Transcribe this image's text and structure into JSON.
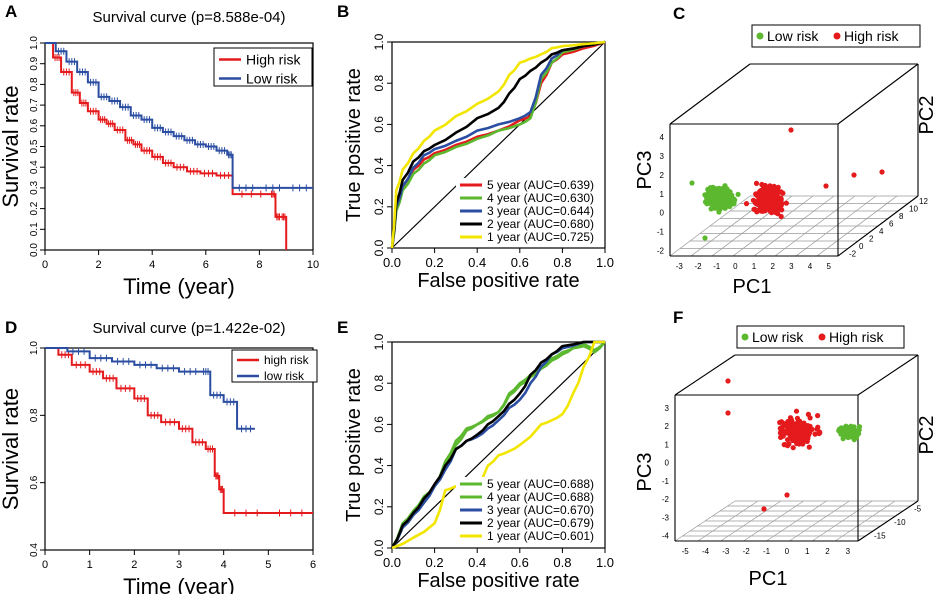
{
  "panel_letters": [
    "A",
    "B",
    "C",
    "D",
    "E",
    "F"
  ],
  "colors": {
    "red": "#e41a1c",
    "blue": "#2b4ea2",
    "green": "#5cb82e",
    "black": "#000000",
    "yellow": "#f2e600",
    "axis": "#000000",
    "grid": "#9a9a9a"
  },
  "chart_data": [
    {
      "panel": "A",
      "type": "line",
      "title": "Survival curve (p=8.588e-04)",
      "xlabel": "Time (year)",
      "ylabel": "Survival rate",
      "xlim": [
        0,
        10
      ],
      "ylim": [
        0,
        1
      ],
      "xticks": [
        0,
        2,
        4,
        6,
        8,
        10
      ],
      "yticks": [
        0.0,
        0.1,
        0.2,
        0.3,
        0.4,
        0.5,
        0.6,
        0.7,
        0.8,
        0.9,
        1.0
      ],
      "ytick_labels": [
        "0.0",
        "0.1",
        "0.2",
        "0.3",
        "0.4",
        "0.5",
        "0.6",
        "0.7",
        "0.8",
        "0.9",
        "1.0"
      ],
      "legend": "top-right",
      "series": [
        {
          "name": "High risk",
          "color": "#e41a1c",
          "x": [
            0,
            0.3,
            0.6,
            1.0,
            1.3,
            1.6,
            2.0,
            2.3,
            2.6,
            3.0,
            3.3,
            3.6,
            4.0,
            4.4,
            4.8,
            5.3,
            5.8,
            6.4,
            7.0,
            8.4,
            8.6,
            8.8,
            9.0
          ],
          "y": [
            1.0,
            0.93,
            0.86,
            0.76,
            0.71,
            0.67,
            0.63,
            0.61,
            0.58,
            0.53,
            0.51,
            0.48,
            0.45,
            0.42,
            0.4,
            0.38,
            0.37,
            0.36,
            0.27,
            0.27,
            0.16,
            0.16,
            0.0
          ]
        },
        {
          "name": "Low risk",
          "color": "#2b4ea2",
          "x": [
            0,
            0.4,
            0.8,
            1.2,
            1.6,
            2.0,
            2.4,
            2.8,
            3.2,
            3.6,
            4.0,
            4.4,
            4.8,
            5.2,
            5.6,
            6.0,
            6.4,
            6.8,
            7.0,
            8.0,
            9.0,
            10.0
          ],
          "y": [
            1.0,
            0.96,
            0.91,
            0.86,
            0.81,
            0.74,
            0.72,
            0.69,
            0.65,
            0.63,
            0.59,
            0.57,
            0.55,
            0.53,
            0.51,
            0.5,
            0.48,
            0.46,
            0.3,
            0.3,
            0.3,
            0.3
          ]
        }
      ]
    },
    {
      "panel": "B",
      "type": "line",
      "xlabel": "False positive rate",
      "ylabel": "True positive rate",
      "xlim": [
        0,
        1
      ],
      "ylim": [
        0,
        1
      ],
      "xticks": [
        0.0,
        0.2,
        0.4,
        0.6,
        0.8,
        1.0
      ],
      "yticks": [
        0.0,
        0.2,
        0.4,
        0.6,
        0.8,
        1.0
      ],
      "legend": "bottom-right",
      "series": [
        {
          "name": "5 year (AUC=0.639)",
          "color": "#e41a1c",
          "x": [
            0,
            0.02,
            0.05,
            0.1,
            0.15,
            0.2,
            0.3,
            0.4,
            0.5,
            0.6,
            0.65,
            0.7,
            0.75,
            0.8,
            0.9,
            1.0
          ],
          "y": [
            0,
            0.2,
            0.3,
            0.38,
            0.43,
            0.46,
            0.5,
            0.54,
            0.57,
            0.62,
            0.64,
            0.8,
            0.9,
            0.94,
            0.97,
            1.0
          ]
        },
        {
          "name": "4 year (AUC=0.630)",
          "color": "#5cb82e",
          "x": [
            0,
            0.02,
            0.05,
            0.1,
            0.15,
            0.2,
            0.3,
            0.4,
            0.5,
            0.6,
            0.65,
            0.7,
            0.75,
            0.8,
            0.9,
            1.0
          ],
          "y": [
            0,
            0.18,
            0.28,
            0.36,
            0.41,
            0.45,
            0.49,
            0.53,
            0.57,
            0.6,
            0.63,
            0.82,
            0.9,
            0.95,
            0.98,
            1.0
          ]
        },
        {
          "name": "3 year (AUC=0.644)",
          "color": "#2b4ea2",
          "x": [
            0,
            0.02,
            0.05,
            0.1,
            0.15,
            0.2,
            0.3,
            0.4,
            0.5,
            0.6,
            0.65,
            0.7,
            0.75,
            0.8,
            0.9,
            1.0
          ],
          "y": [
            0,
            0.2,
            0.3,
            0.39,
            0.45,
            0.48,
            0.52,
            0.57,
            0.6,
            0.63,
            0.66,
            0.84,
            0.92,
            0.96,
            0.98,
            1.0
          ]
        },
        {
          "name": "2 year (AUC=0.680)",
          "color": "#000000",
          "x": [
            0,
            0.02,
            0.05,
            0.1,
            0.15,
            0.2,
            0.3,
            0.4,
            0.5,
            0.55,
            0.6,
            0.65,
            0.7,
            0.75,
            0.8,
            0.9,
            1.0
          ],
          "y": [
            0,
            0.22,
            0.33,
            0.42,
            0.47,
            0.5,
            0.56,
            0.63,
            0.68,
            0.75,
            0.82,
            0.86,
            0.9,
            0.94,
            0.96,
            0.98,
            1.0
          ]
        },
        {
          "name": "1 year (AUC=0.725)",
          "color": "#f2e600",
          "x": [
            0,
            0.02,
            0.05,
            0.1,
            0.15,
            0.2,
            0.3,
            0.4,
            0.5,
            0.55,
            0.6,
            0.65,
            0.7,
            0.75,
            0.8,
            0.9,
            1.0
          ],
          "y": [
            0,
            0.28,
            0.38,
            0.46,
            0.52,
            0.57,
            0.64,
            0.7,
            0.76,
            0.84,
            0.9,
            0.92,
            0.94,
            0.97,
            0.98,
            0.99,
            1.0
          ]
        }
      ]
    },
    {
      "panel": "C",
      "type": "scatter",
      "xlabel": "PC1",
      "ylabel": "PC2",
      "zlabel": "PC3",
      "pc1_ticks": [
        "-3",
        "-2",
        "-1",
        "0",
        "1",
        "2",
        "3",
        "4",
        "5"
      ],
      "pc2_ticks": [
        "-2",
        "0",
        "2",
        "4",
        "6",
        "8",
        "10",
        "12"
      ],
      "pc3_ticks": [
        "-2",
        "-1",
        "0",
        "1",
        "2",
        "3",
        "4"
      ],
      "legend": "top",
      "groups": [
        {
          "name": "Low risk",
          "color": "#5cb82e",
          "n": 220,
          "pc1": [
            -2.4,
            0.3
          ],
          "pc3": [
            -0.8,
            1.6
          ],
          "pc2": [
            -2,
            6
          ]
        },
        {
          "name": "High risk",
          "color": "#e41a1c",
          "n": 190,
          "pc1": [
            -0.2,
            3.8
          ],
          "pc3": [
            -0.8,
            1.8
          ],
          "pc2": [
            -1,
            8
          ]
        }
      ]
    },
    {
      "panel": "D",
      "type": "line",
      "title": "Survival curve (p=1.422e-02)",
      "xlabel": "Time (year)",
      "ylabel": "Survival rate",
      "xlim": [
        0,
        6
      ],
      "ylim": [
        0.4,
        1.0
      ],
      "xticks": [
        0,
        1,
        2,
        3,
        4,
        5,
        6
      ],
      "yticks": [
        0.4,
        0.6,
        0.8,
        1.0
      ],
      "ytick_labels": [
        "0.4",
        "0.6",
        "0.8",
        "1.0"
      ],
      "legend": "top-right",
      "series": [
        {
          "name": "high risk",
          "color": "#e41a1c",
          "x": [
            0,
            0.3,
            0.6,
            1.0,
            1.3,
            1.6,
            2.0,
            2.3,
            2.6,
            3.0,
            3.3,
            3.6,
            3.8,
            3.9,
            4.0,
            5.0,
            6.0
          ],
          "y": [
            1.0,
            0.98,
            0.95,
            0.93,
            0.91,
            0.88,
            0.85,
            0.8,
            0.78,
            0.76,
            0.72,
            0.7,
            0.62,
            0.58,
            0.51,
            0.51,
            0.51
          ]
        },
        {
          "name": "low risk",
          "color": "#2b4ea2",
          "x": [
            0,
            0.5,
            1.0,
            1.5,
            2.0,
            2.5,
            3.0,
            3.5,
            3.7,
            4.0,
            4.3,
            4.7
          ],
          "y": [
            1.0,
            0.99,
            0.97,
            0.96,
            0.95,
            0.94,
            0.93,
            0.93,
            0.86,
            0.84,
            0.76,
            0.76
          ]
        }
      ]
    },
    {
      "panel": "E",
      "type": "line",
      "xlabel": "False positive rate",
      "ylabel": "True positive rate",
      "xlim": [
        0,
        1
      ],
      "ylim": [
        0,
        1
      ],
      "xticks": [
        0.0,
        0.2,
        0.4,
        0.6,
        0.8,
        1.0
      ],
      "yticks": [
        0.0,
        0.2,
        0.4,
        0.6,
        0.8,
        1.0
      ],
      "legend": "bottom-right",
      "series": [
        {
          "name": "5 year (AUC=0.688)",
          "color": "#5cb82e",
          "x": [
            0,
            0.05,
            0.1,
            0.15,
            0.2,
            0.25,
            0.3,
            0.35,
            0.4,
            0.45,
            0.5,
            0.55,
            0.6,
            0.65,
            0.7,
            0.75,
            0.8,
            0.85,
            0.9,
            0.95,
            1.0
          ],
          "y": [
            0,
            0.12,
            0.18,
            0.25,
            0.3,
            0.42,
            0.52,
            0.58,
            0.6,
            0.64,
            0.66,
            0.75,
            0.8,
            0.84,
            0.88,
            0.92,
            0.95,
            0.97,
            0.99,
            0.96,
            1.0
          ]
        },
        {
          "name": "4 year (AUC=0.688)",
          "color": "#5cb82e",
          "x": [
            0,
            0.05,
            0.1,
            0.15,
            0.2,
            0.25,
            0.3,
            0.35,
            0.4,
            0.45,
            0.5,
            0.55,
            0.6,
            0.65,
            0.7,
            0.75,
            0.8,
            0.85,
            0.9,
            0.95,
            1.0
          ],
          "y": [
            0,
            0.1,
            0.16,
            0.24,
            0.3,
            0.4,
            0.5,
            0.57,
            0.6,
            0.63,
            0.66,
            0.74,
            0.79,
            0.83,
            0.87,
            0.91,
            0.94,
            0.97,
            0.98,
            0.95,
            1.0
          ]
        },
        {
          "name": "3 year (AUC=0.670)",
          "color": "#2b4ea2",
          "x": [
            0,
            0.05,
            0.1,
            0.15,
            0.2,
            0.25,
            0.3,
            0.35,
            0.4,
            0.45,
            0.5,
            0.55,
            0.6,
            0.65,
            0.7,
            0.75,
            0.8,
            0.9,
            1.0
          ],
          "y": [
            0,
            0.1,
            0.16,
            0.22,
            0.3,
            0.38,
            0.48,
            0.52,
            0.54,
            0.58,
            0.62,
            0.68,
            0.72,
            0.8,
            0.88,
            0.94,
            0.97,
            1.0,
            1.0
          ]
        },
        {
          "name": "2 year (AUC=0.679)",
          "color": "#000000",
          "x": [
            0,
            0.05,
            0.1,
            0.15,
            0.2,
            0.25,
            0.3,
            0.35,
            0.4,
            0.45,
            0.5,
            0.55,
            0.6,
            0.65,
            0.7,
            0.75,
            0.8,
            0.9,
            1.0
          ],
          "y": [
            0,
            0.11,
            0.17,
            0.24,
            0.31,
            0.4,
            0.48,
            0.52,
            0.55,
            0.6,
            0.64,
            0.7,
            0.75,
            0.84,
            0.9,
            0.94,
            0.98,
            1.0,
            1.0
          ]
        },
        {
          "name": "1 year (AUC=0.601)",
          "color": "#f2e600",
          "x": [
            0,
            0.1,
            0.2,
            0.25,
            0.3,
            0.4,
            0.45,
            0.5,
            0.55,
            0.6,
            0.7,
            0.75,
            0.8,
            0.85,
            0.9,
            0.95,
            1.0
          ],
          "y": [
            0,
            0.05,
            0.12,
            0.28,
            0.3,
            0.3,
            0.4,
            0.45,
            0.47,
            0.5,
            0.6,
            0.62,
            0.65,
            0.75,
            0.88,
            1.0,
            1.0
          ]
        }
      ]
    },
    {
      "panel": "F",
      "type": "scatter",
      "xlabel": "PC1",
      "ylabel": "PC2",
      "zlabel": "PC3",
      "pc1_ticks": [
        "-5",
        "-4",
        "-3",
        "-2",
        "-1",
        "0",
        "1",
        "2",
        "3"
      ],
      "pc2_ticks": [
        "-15",
        "-10",
        "-5"
      ],
      "pc3_ticks": [
        "-4",
        "-3",
        "-2",
        "-1",
        "0",
        "1",
        "2",
        "3"
      ],
      "legend": "top",
      "groups": [
        {
          "name": "Low risk",
          "color": "#5cb82e",
          "n": 95,
          "pc1": [
            0.6,
            2.8
          ],
          "pc3": [
            -0.2,
            1.8
          ],
          "pc2": [
            -12,
            -4
          ]
        },
        {
          "name": "High risk",
          "color": "#e41a1c",
          "n": 150,
          "pc1": [
            -2.2,
            1.6
          ],
          "pc3": [
            -0.8,
            2.6
          ],
          "pc2": [
            -15,
            -3
          ]
        }
      ]
    }
  ]
}
